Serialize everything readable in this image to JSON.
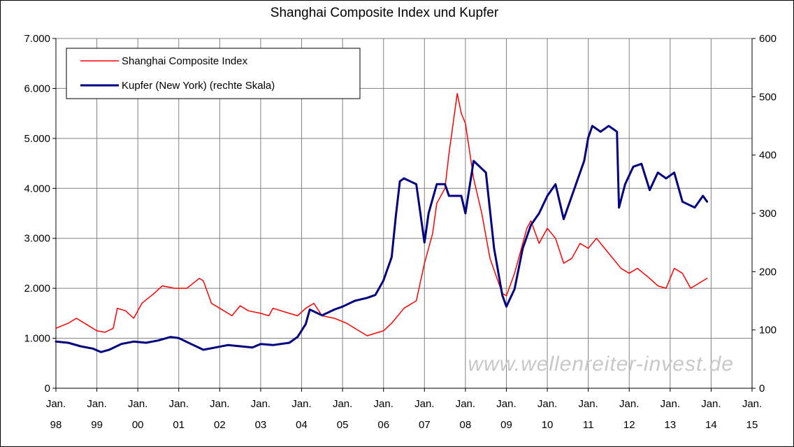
{
  "chart_data": {
    "type": "line",
    "title": "Shanghai Composite Index und Kupfer",
    "watermark": "www.wellenreiter-invest.de",
    "y_left": {
      "ticks": [
        "0",
        "1.000",
        "2.000",
        "3.000",
        "4.000",
        "5.000",
        "6.000",
        "7.000"
      ],
      "range": [
        0,
        7000
      ]
    },
    "y_right": {
      "ticks": [
        "0",
        "100",
        "200",
        "300",
        "400",
        "500",
        "600"
      ],
      "range": [
        0,
        600
      ]
    },
    "x": {
      "range": [
        1998.0,
        2015.0
      ],
      "ticks": [
        {
          "year": 1998,
          "l1": "Jan.",
          "l2": "98"
        },
        {
          "year": 1999,
          "l1": "Jan.",
          "l2": "99"
        },
        {
          "year": 2000,
          "l1": "Jan.",
          "l2": "00"
        },
        {
          "year": 2001,
          "l1": "Jan.",
          "l2": "01"
        },
        {
          "year": 2002,
          "l1": "Jan.",
          "l2": "02"
        },
        {
          "year": 2003,
          "l1": "Jan.",
          "l2": "03"
        },
        {
          "year": 2004,
          "l1": "Jan.",
          "l2": "04"
        },
        {
          "year": 2005,
          "l1": "Jan.",
          "l2": "05"
        },
        {
          "year": 2006,
          "l1": "Jan.",
          "l2": "06"
        },
        {
          "year": 2007,
          "l1": "Jan.",
          "l2": "07"
        },
        {
          "year": 2008,
          "l1": "Jan.",
          "l2": "08"
        },
        {
          "year": 2009,
          "l1": "Jan.",
          "l2": "09"
        },
        {
          "year": 2010,
          "l1": "Jan.",
          "l2": "10"
        },
        {
          "year": 2011,
          "l1": "Jan.",
          "l2": "11"
        },
        {
          "year": 2012,
          "l1": "Jan.",
          "l2": "12"
        },
        {
          "year": 2013,
          "l1": "Jan.",
          "l2": "13"
        },
        {
          "year": 2014,
          "l1": "Jan.",
          "l2": "14"
        },
        {
          "year": 2015,
          "l1": "Jan.",
          "l2": "15"
        }
      ]
    },
    "grid": true,
    "legend_position": "top-left",
    "series": [
      {
        "name": "Shanghai Composite Index",
        "axis": "left",
        "color": "#ff0000",
        "points": [
          [
            1998.0,
            1200
          ],
          [
            1998.3,
            1300
          ],
          [
            1998.5,
            1400
          ],
          [
            1998.8,
            1250
          ],
          [
            1999.0,
            1150
          ],
          [
            1999.2,
            1120
          ],
          [
            1999.4,
            1200
          ],
          [
            1999.5,
            1600
          ],
          [
            1999.7,
            1550
          ],
          [
            1999.9,
            1400
          ],
          [
            2000.1,
            1700
          ],
          [
            2000.4,
            1900
          ],
          [
            2000.6,
            2050
          ],
          [
            2000.9,
            2000
          ],
          [
            2001.2,
            2000
          ],
          [
            2001.5,
            2200
          ],
          [
            2001.6,
            2150
          ],
          [
            2001.8,
            1700
          ],
          [
            2002.0,
            1600
          ],
          [
            2002.3,
            1450
          ],
          [
            2002.5,
            1650
          ],
          [
            2002.7,
            1550
          ],
          [
            2003.0,
            1500
          ],
          [
            2003.2,
            1450
          ],
          [
            2003.3,
            1600
          ],
          [
            2003.7,
            1500
          ],
          [
            2003.9,
            1450
          ],
          [
            2004.1,
            1600
          ],
          [
            2004.3,
            1700
          ],
          [
            2004.5,
            1450
          ],
          [
            2004.8,
            1400
          ],
          [
            2005.1,
            1300
          ],
          [
            2005.4,
            1150
          ],
          [
            2005.6,
            1050
          ],
          [
            2005.8,
            1100
          ],
          [
            2006.0,
            1150
          ],
          [
            2006.2,
            1300
          ],
          [
            2006.5,
            1600
          ],
          [
            2006.8,
            1750
          ],
          [
            2007.0,
            2500
          ],
          [
            2007.2,
            3100
          ],
          [
            2007.3,
            3700
          ],
          [
            2007.5,
            4000
          ],
          [
            2007.6,
            4700
          ],
          [
            2007.8,
            5900
          ],
          [
            2007.9,
            5500
          ],
          [
            2008.0,
            5300
          ],
          [
            2008.2,
            4200
          ],
          [
            2008.4,
            3500
          ],
          [
            2008.6,
            2600
          ],
          [
            2008.9,
            1900
          ],
          [
            2009.0,
            1850
          ],
          [
            2009.2,
            2300
          ],
          [
            2009.5,
            3200
          ],
          [
            2009.6,
            3350
          ],
          [
            2009.8,
            2900
          ],
          [
            2010.0,
            3200
          ],
          [
            2010.2,
            3000
          ],
          [
            2010.4,
            2500
          ],
          [
            2010.6,
            2600
          ],
          [
            2010.8,
            2900
          ],
          [
            2011.0,
            2800
          ],
          [
            2011.2,
            3000
          ],
          [
            2011.4,
            2800
          ],
          [
            2011.6,
            2600
          ],
          [
            2011.8,
            2400
          ],
          [
            2012.0,
            2300
          ],
          [
            2012.2,
            2400
          ],
          [
            2012.5,
            2200
          ],
          [
            2012.7,
            2050
          ],
          [
            2012.9,
            2000
          ],
          [
            2013.1,
            2400
          ],
          [
            2013.3,
            2300
          ],
          [
            2013.5,
            2000
          ],
          [
            2013.7,
            2100
          ],
          [
            2013.9,
            2200
          ]
        ]
      },
      {
        "name": "Kupfer (New York) (rechte Skala)",
        "axis": "right",
        "color": "#000080",
        "points": [
          [
            1998.0,
            80
          ],
          [
            1998.3,
            78
          ],
          [
            1998.6,
            72
          ],
          [
            1998.9,
            68
          ],
          [
            1999.1,
            62
          ],
          [
            1999.3,
            66
          ],
          [
            1999.6,
            76
          ],
          [
            1999.9,
            80
          ],
          [
            2000.2,
            78
          ],
          [
            2000.5,
            82
          ],
          [
            2000.8,
            88
          ],
          [
            2001.0,
            86
          ],
          [
            2001.3,
            76
          ],
          [
            2001.6,
            66
          ],
          [
            2001.9,
            70
          ],
          [
            2002.2,
            74
          ],
          [
            2002.5,
            72
          ],
          [
            2002.8,
            70
          ],
          [
            2003.0,
            76
          ],
          [
            2003.3,
            74
          ],
          [
            2003.7,
            78
          ],
          [
            2003.9,
            88
          ],
          [
            2004.1,
            110
          ],
          [
            2004.2,
            135
          ],
          [
            2004.5,
            125
          ],
          [
            2004.8,
            135
          ],
          [
            2005.0,
            140
          ],
          [
            2005.3,
            150
          ],
          [
            2005.6,
            155
          ],
          [
            2005.8,
            160
          ],
          [
            2006.0,
            185
          ],
          [
            2006.2,
            225
          ],
          [
            2006.3,
            295
          ],
          [
            2006.4,
            355
          ],
          [
            2006.5,
            360
          ],
          [
            2006.8,
            350
          ],
          [
            2007.0,
            250
          ],
          [
            2007.1,
            300
          ],
          [
            2007.3,
            350
          ],
          [
            2007.5,
            350
          ],
          [
            2007.6,
            330
          ],
          [
            2007.9,
            330
          ],
          [
            2008.0,
            300
          ],
          [
            2008.2,
            390
          ],
          [
            2008.5,
            370
          ],
          [
            2008.7,
            240
          ],
          [
            2008.9,
            160
          ],
          [
            2009.0,
            140
          ],
          [
            2009.2,
            170
          ],
          [
            2009.4,
            240
          ],
          [
            2009.6,
            280
          ],
          [
            2009.8,
            300
          ],
          [
            2010.0,
            330
          ],
          [
            2010.2,
            350
          ],
          [
            2010.4,
            290
          ],
          [
            2010.6,
            330
          ],
          [
            2010.8,
            370
          ],
          [
            2010.9,
            390
          ],
          [
            2011.0,
            430
          ],
          [
            2011.1,
            450
          ],
          [
            2011.3,
            440
          ],
          [
            2011.5,
            450
          ],
          [
            2011.7,
            440
          ],
          [
            2011.75,
            310
          ],
          [
            2011.9,
            350
          ],
          [
            2012.1,
            380
          ],
          [
            2012.3,
            385
          ],
          [
            2012.5,
            340
          ],
          [
            2012.7,
            370
          ],
          [
            2012.9,
            360
          ],
          [
            2013.1,
            370
          ],
          [
            2013.3,
            320
          ],
          [
            2013.6,
            310
          ],
          [
            2013.8,
            330
          ],
          [
            2013.9,
            320
          ]
        ]
      }
    ]
  }
}
